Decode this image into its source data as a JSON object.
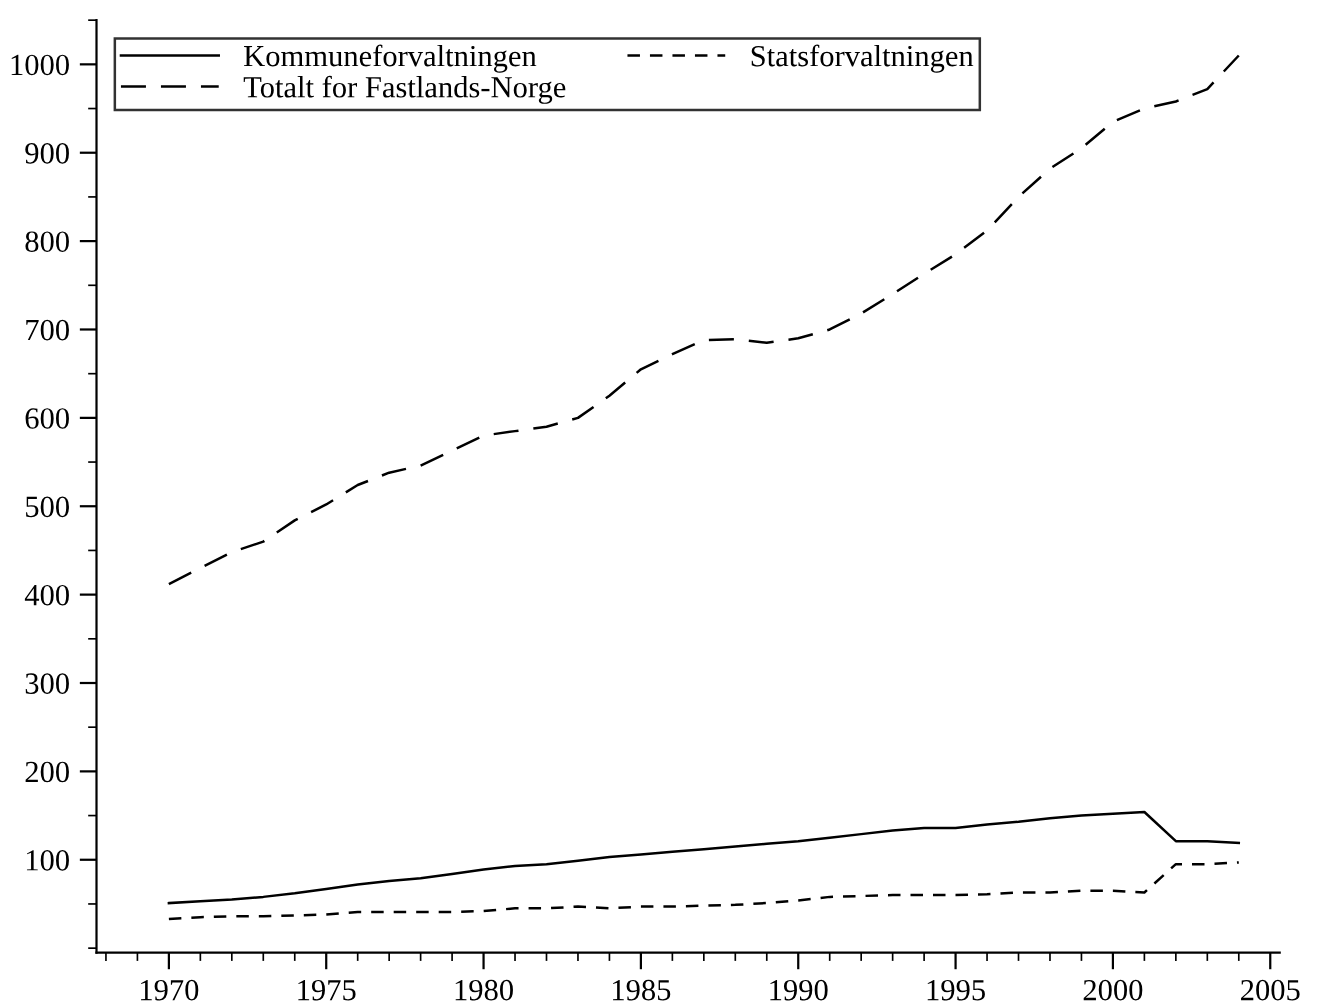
{
  "chart_data": {
    "type": "line",
    "x": [
      1970,
      1971,
      1972,
      1973,
      1974,
      1975,
      1976,
      1977,
      1978,
      1979,
      1980,
      1981,
      1982,
      1983,
      1984,
      1985,
      1986,
      1987,
      1988,
      1989,
      1990,
      1991,
      1992,
      1993,
      1994,
      1995,
      1996,
      1997,
      1998,
      1999,
      2000,
      2001,
      2002,
      2003,
      2004
    ],
    "series": [
      {
        "name": "Kommuneforvaltningen",
        "color": "#000000",
        "line_style": "solid",
        "values": [
          51,
          53,
          55,
          58,
          62,
          67,
          72,
          76,
          79,
          84,
          89,
          93,
          95,
          99,
          103,
          106,
          109,
          112,
          115,
          118,
          121,
          125,
          129,
          133,
          136,
          136,
          140,
          143,
          147,
          150,
          152,
          154,
          121,
          121,
          119
        ]
      },
      {
        "name": "Statsforvaltningen",
        "color": "#000000",
        "line_style": "dashed",
        "values": [
          33,
          35,
          36,
          36,
          37,
          38,
          41,
          41,
          41,
          41,
          42,
          45,
          45,
          47,
          45,
          47,
          47,
          48,
          49,
          51,
          54,
          58,
          59,
          60,
          60,
          60,
          61,
          63,
          63,
          65,
          65,
          63,
          95,
          95,
          97
        ]
      },
      {
        "name": "Totalt for Fastlands-Norge",
        "color": "#000000",
        "line_style": "dashed",
        "values": [
          412,
          430,
          448,
          460,
          484,
          502,
          524,
          538,
          546,
          563,
          580,
          585,
          590,
          600,
          625,
          655,
          672,
          688,
          689,
          685,
          690,
          700,
          718,
          740,
          763,
          785,
          812,
          850,
          882,
          905,
          935,
          950,
          958,
          972,
          1010
        ]
      }
    ],
    "xlim": [
      1967.7,
      2005.3
    ],
    "xticks": [
      1970,
      1975,
      1980,
      1985,
      1990,
      1995,
      2000,
      2005
    ],
    "ylim": [
      -5,
      1050
    ],
    "yticks": [
      100,
      200,
      300,
      400,
      500,
      600,
      700,
      800,
      900,
      1000
    ],
    "grid": false,
    "legend": "top left",
    "marker": "none"
  }
}
